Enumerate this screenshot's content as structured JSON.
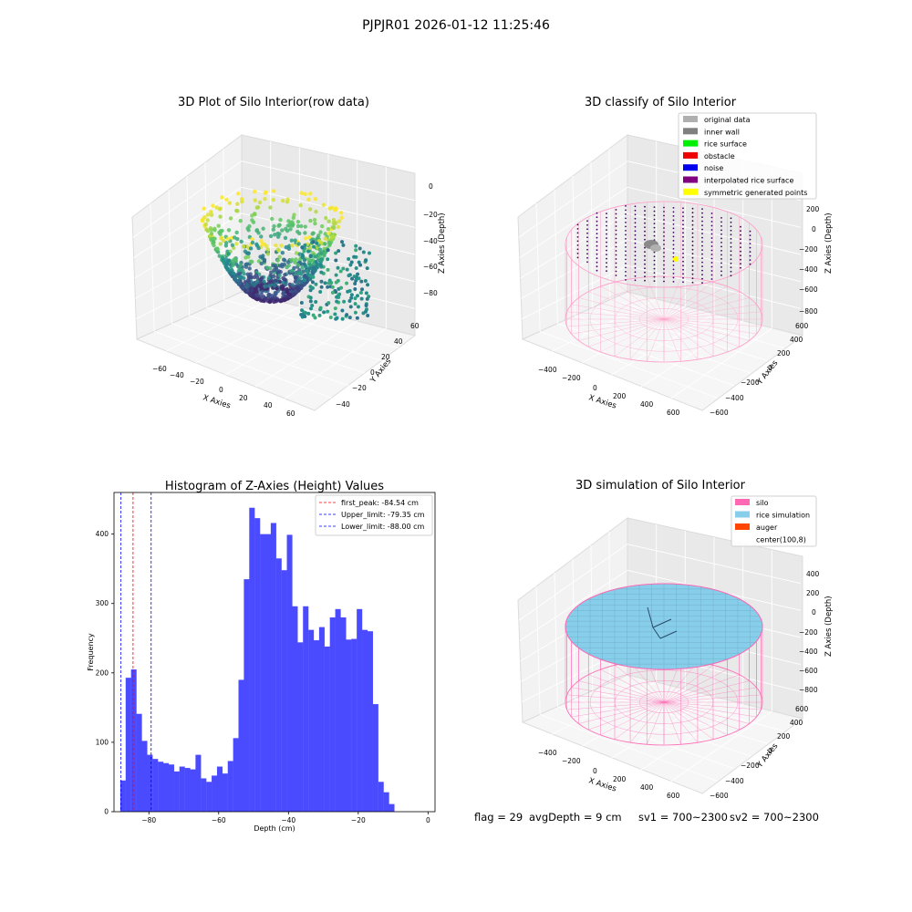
{
  "suptitle": "PJPJR01 2026-01-12 11:25:46",
  "panels": {
    "raw": {
      "title": "3D Plot of Silo Interior(row data)",
      "xlabel": "X Axies",
      "ylabel": "Y Axies",
      "zlabel": "Z Axies (Depth)",
      "xticks": [
        "−60",
        "−40",
        "−20",
        "0",
        "20",
        "40",
        "60"
      ],
      "yticks": [
        "−40",
        "−20",
        "0",
        "20",
        "40",
        "60"
      ],
      "zticks": [
        "0",
        "−20",
        "−40",
        "−60",
        "−80"
      ]
    },
    "classify": {
      "title": "3D classify of Silo Interior",
      "xlabel": "X Axies",
      "ylabel": "Y Axies",
      "zlabel": "Z Axies (Depth)",
      "xticks": [
        "−400",
        "−200",
        "0",
        "200",
        "400",
        "600"
      ],
      "yticks": [
        "−600",
        "−400",
        "−200",
        "0",
        "200",
        "400",
        "600"
      ],
      "zticks": [
        "200",
        "0",
        "−200",
        "−400",
        "−600",
        "−800"
      ],
      "legend": [
        {
          "label": "original data",
          "color": "#b0b0b0"
        },
        {
          "label": "inner wall",
          "color": "#808080"
        },
        {
          "label": "rice surface",
          "color": "#00ee00"
        },
        {
          "label": "obstacle",
          "color": "#ee0000"
        },
        {
          "label": "noise",
          "color": "#0000ee"
        },
        {
          "label": "interpolated rice surface",
          "color": "#800080"
        },
        {
          "label": "symmetric generated points",
          "color": "#ffff00"
        }
      ]
    },
    "simulation": {
      "title": "3D simulation of Silo Interior",
      "xlabel": "X Axies",
      "ylabel": "Y Axies",
      "zlabel": "Z Axies (Depth)",
      "xticks": [
        "−400",
        "−200",
        "0",
        "200",
        "400",
        "600"
      ],
      "yticks": [
        "−600",
        "−400",
        "−200",
        "0",
        "200",
        "400",
        "600"
      ],
      "zticks": [
        "400",
        "200",
        "0",
        "−200",
        "−400",
        "−600",
        "−800"
      ],
      "legend": [
        {
          "label": "silo",
          "color": "#ff69b4"
        },
        {
          "label": "rice simulation",
          "color": "#87ceeb"
        },
        {
          "label": "auger",
          "color": "#ff4500"
        },
        {
          "label": "center(100,8)",
          "color": "#ffffff"
        }
      ]
    }
  },
  "status": {
    "flag": "flag = 29",
    "avg": "avgDepth = 9 cm",
    "sv1": "sv1 = 700~2300",
    "sv2": "sv2 = 700~2300"
  },
  "chart_data": {
    "type": "bar",
    "title": "Histogram of Z-Axies (Height) Values",
    "xlabel": "Depth (cm)",
    "ylabel": "Frequency",
    "xlim": [
      -90,
      2
    ],
    "ylim": [
      0,
      460
    ],
    "xticks": [
      -80,
      -60,
      -40,
      -20,
      0
    ],
    "yticks": [
      0,
      100,
      200,
      300,
      400
    ],
    "bar_color": "#4a4aff",
    "bin_start": -88.2,
    "bin_width": 1.54,
    "values": [
      45,
      193,
      205,
      141,
      102,
      82,
      76,
      72,
      70,
      68,
      58,
      65,
      63,
      61,
      82,
      48,
      43,
      52,
      65,
      55,
      73,
      106,
      190,
      335,
      438,
      423,
      400,
      400,
      416,
      365,
      348,
      399,
      296,
      244,
      296,
      262,
      247,
      266,
      238,
      280,
      292,
      280,
      248,
      249,
      292,
      262,
      260,
      155,
      43,
      28,
      11
    ],
    "vlines": [
      {
        "label": "first_peak: -84.54 cm",
        "x": -84.54,
        "color": "#ff0000"
      },
      {
        "label": "Upper_limit: -79.35 cm",
        "x": -79.35,
        "color": "#0000ff"
      },
      {
        "label": "Lower_limit: -88.00 cm",
        "x": -88.0,
        "color": "#0000ff"
      }
    ]
  }
}
